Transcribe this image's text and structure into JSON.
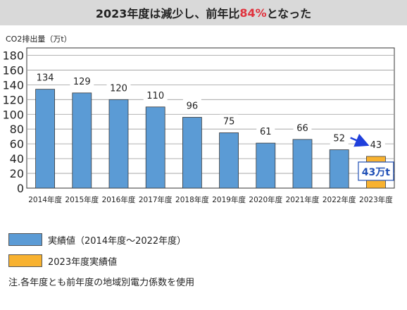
{
  "header": {
    "title_prefix": "2023年度は減少し、前年比",
    "title_highlight": "84%",
    "title_suffix": "となった"
  },
  "chart_data": {
    "type": "bar",
    "title": "2023年度は減少し、前年比84%となった",
    "ylabel": "CO2排出量（万t）",
    "xlabel": "",
    "categories": [
      "2014年度",
      "2015年度",
      "2016年度",
      "2017年度",
      "2018年度",
      "2019年度",
      "2020年度",
      "2021年度",
      "2022年度",
      "2023年度"
    ],
    "values": [
      134,
      129,
      120,
      110,
      96,
      75,
      61,
      66,
      52,
      43
    ],
    "data_labels": [
      "134",
      "129",
      "120",
      "110",
      "96",
      "75",
      "61",
      "66",
      "52",
      "43"
    ],
    "yticks": [
      "0",
      "20",
      "40",
      "60",
      "80",
      "100",
      "120",
      "140",
      "160",
      "180"
    ],
    "ylim": [
      0,
      190
    ],
    "grid": true,
    "bar_groups": [
      "actual",
      "actual",
      "actual",
      "actual",
      "actual",
      "actual",
      "actual",
      "actual",
      "actual",
      "latest"
    ],
    "colors": {
      "actual": "#5b9bd5",
      "latest": "#f8b230",
      "arrow": "#1f3fdc",
      "callout_text": "#1f4fb6",
      "bar_border": "#3a3a3a"
    },
    "annotation": {
      "text": "43万t",
      "target_index": 9,
      "arrow_from_index": 8
    }
  },
  "legend": {
    "items": [
      {
        "label": "実績値（2014年度～2022年度）",
        "color": "#5b9bd5"
      },
      {
        "label": "2023年度実績値",
        "color": "#f8b230"
      }
    ]
  },
  "footnote": "注.各年度とも前年度の地域別電力係数を使用"
}
